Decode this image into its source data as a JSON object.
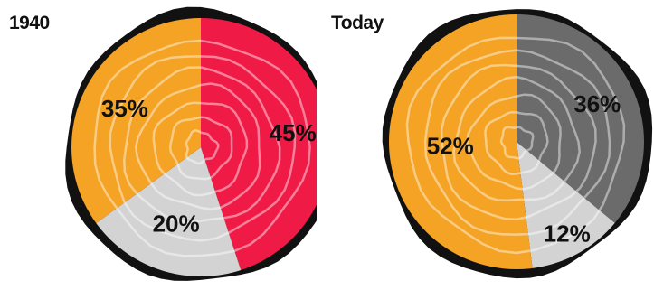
{
  "chart_data": [
    {
      "type": "pie",
      "title": "1940",
      "slices": [
        {
          "value": 45,
          "label": "45%",
          "color": "#ef1a45"
        },
        {
          "value": 20,
          "label": "20%",
          "color": "#d3d3d3"
        },
        {
          "value": 35,
          "label": "35%",
          "color": "#f5a324"
        }
      ]
    },
    {
      "type": "pie",
      "title": "Today",
      "slices": [
        {
          "value": 36,
          "label": "36%",
          "color": "#6b6b6b"
        },
        {
          "value": 12,
          "label": "12%",
          "color": "#d3d3d3"
        },
        {
          "value": 52,
          "label": "52%",
          "color": "#f5a324"
        }
      ]
    }
  ],
  "style": {
    "bark_color": "#111111",
    "ring_color": "#ffffff"
  }
}
